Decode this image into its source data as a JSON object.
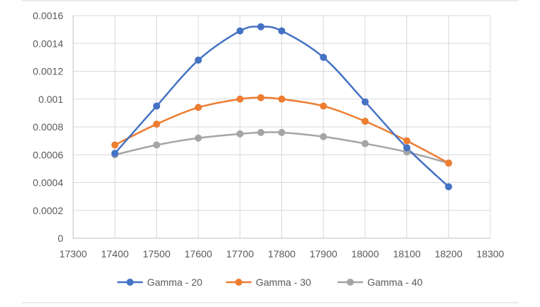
{
  "chart_data": {
    "type": "line",
    "title": "",
    "xlabel": "",
    "ylabel": "",
    "xlim": [
      17300,
      18300
    ],
    "ylim": [
      0,
      0.0016
    ],
    "x_ticks": [
      "17300",
      "17400",
      "17500",
      "17600",
      "17700",
      "17800",
      "17900",
      "18000",
      "18100",
      "18200",
      "18300"
    ],
    "y_ticks": [
      "0",
      "0.0002",
      "0.0004",
      "0.0006",
      "0.0008",
      "0.001",
      "0.0012",
      "0.0014",
      "0.0016"
    ],
    "x_tick_values": [
      17300,
      17400,
      17500,
      17600,
      17700,
      17800,
      17900,
      18000,
      18100,
      18200,
      18300
    ],
    "y_tick_values": [
      0,
      0.0002,
      0.0004,
      0.0006,
      0.0008,
      0.001,
      0.0012,
      0.0014,
      0.0016
    ],
    "grid": true,
    "legend_position": "bottom",
    "x": [
      17400,
      17500,
      17600,
      17700,
      17750,
      17800,
      17900,
      18000,
      18100,
      18200
    ],
    "series": [
      {
        "name": "Gamma - 20",
        "color": "#4472C4",
        "values": [
          0.00061,
          0.00095,
          0.00128,
          0.00149,
          0.00152,
          0.00149,
          0.0013,
          0.00098,
          0.00065,
          0.00037
        ]
      },
      {
        "name": "Gamma - 30",
        "color": "#ED7D31",
        "values": [
          0.00067,
          0.00082,
          0.00094,
          0.001,
          0.00101,
          0.001,
          0.00095,
          0.00084,
          0.0007,
          0.00054
        ]
      },
      {
        "name": "Gamma - 40",
        "color": "#A5A5A5",
        "values": [
          0.0006,
          0.00067,
          0.00072,
          0.00075,
          0.00076,
          0.00076,
          0.00073,
          0.00068,
          0.00062,
          0.00054
        ]
      }
    ]
  }
}
